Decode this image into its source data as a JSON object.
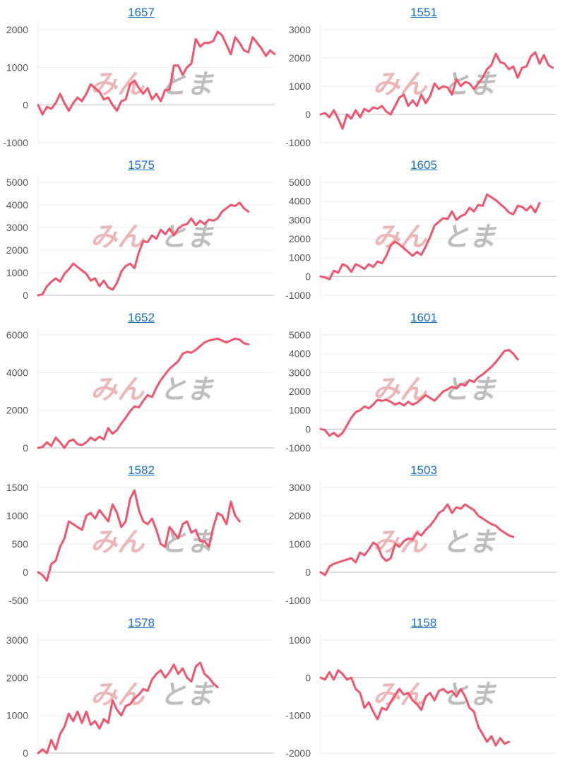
{
  "colors": {
    "line": "#f2546e",
    "link": "#1a6fc9",
    "zero": "#bdbdbd",
    "grid": "#eeeeee",
    "tick": "#555555"
  },
  "chart_data": [
    {
      "type": "line",
      "title": "1657",
      "ylim": [
        -1000,
        2000
      ],
      "ticks": [
        "2000",
        "1000",
        "0",
        "-1000"
      ],
      "tickvals": [
        2000,
        1000,
        0,
        -1000
      ],
      "values": [
        0,
        -250,
        -50,
        -100,
        50,
        300,
        50,
        -150,
        50,
        200,
        100,
        300,
        550,
        450,
        350,
        150,
        200,
        0,
        -150,
        100,
        150,
        550,
        650,
        450,
        300,
        450,
        150,
        300,
        100,
        400,
        400,
        1050,
        1050,
        800,
        1000,
        1100,
        1750,
        1550,
        1650,
        1650,
        1700,
        1950,
        1850,
        1600,
        1350,
        1800,
        1650,
        1450,
        1400,
        1800,
        1650,
        1500,
        1300,
        1450,
        1350
      ]
    },
    {
      "type": "line",
      "title": "1551",
      "ylim": [
        -1000,
        3000
      ],
      "ticks": [
        "3000",
        "2000",
        "1000",
        "0",
        "-1000"
      ],
      "tickvals": [
        3000,
        2000,
        1000,
        0,
        -1000
      ],
      "values": [
        0,
        50,
        -100,
        150,
        -150,
        -500,
        0,
        -150,
        150,
        -100,
        200,
        100,
        250,
        200,
        300,
        100,
        0,
        300,
        600,
        700,
        300,
        500,
        300,
        700,
        400,
        650,
        1100,
        900,
        1000,
        950,
        700,
        1250,
        1000,
        1150,
        1100,
        900,
        1100,
        1300,
        1600,
        1750,
        2150,
        1850,
        1800,
        1600,
        1700,
        1300,
        1650,
        1700,
        2050,
        2200,
        1800,
        2100,
        1750,
        1650
      ]
    },
    {
      "type": "line",
      "title": "1575",
      "ylim": [
        0,
        5000
      ],
      "ticks": [
        "5000",
        "4000",
        "3000",
        "2000",
        "1000",
        "0"
      ],
      "tickvals": [
        5000,
        4000,
        3000,
        2000,
        1000,
        0
      ],
      "values": [
        0,
        50,
        400,
        600,
        750,
        600,
        950,
        1150,
        1400,
        1250,
        1100,
        950,
        650,
        750,
        400,
        650,
        350,
        250,
        550,
        1050,
        1300,
        1400,
        1200,
        1900,
        2400,
        2350,
        2650,
        2500,
        2900,
        2700,
        2950,
        2650,
        2950,
        3100,
        3150,
        3400,
        3100,
        3300,
        3150,
        3350,
        3300,
        3400,
        3700,
        3850,
        4000,
        3950,
        4100,
        3850,
        3700
      ]
    },
    {
      "type": "line",
      "title": "1605",
      "ylim": [
        -1000,
        5000
      ],
      "ticks": [
        "5000",
        "4000",
        "3000",
        "2000",
        "1000",
        "0",
        "-1000"
      ],
      "tickvals": [
        5000,
        4000,
        3000,
        2000,
        1000,
        0,
        -1000
      ],
      "values": [
        0,
        -50,
        -150,
        300,
        200,
        650,
        550,
        250,
        650,
        550,
        400,
        650,
        500,
        800,
        700,
        1100,
        1650,
        1850,
        1700,
        1500,
        1300,
        1100,
        1300,
        1150,
        1600,
        2100,
        2700,
        2900,
        3100,
        3050,
        3450,
        3000,
        3200,
        3300,
        3650,
        3450,
        3800,
        3750,
        4350,
        4200,
        4050,
        3850,
        3650,
        3400,
        3300,
        3750,
        3700,
        3500,
        3750,
        3400,
        3900
      ]
    },
    {
      "type": "line",
      "title": "1652",
      "ylim": [
        0,
        6000
      ],
      "ticks": [
        "6000",
        "4000",
        "2000",
        "0"
      ],
      "tickvals": [
        6000,
        4000,
        2000,
        0
      ],
      "values": [
        0,
        50,
        300,
        100,
        550,
        300,
        0,
        350,
        450,
        200,
        150,
        300,
        550,
        400,
        600,
        450,
        1050,
        750,
        950,
        1300,
        1600,
        1950,
        2200,
        2150,
        2500,
        2800,
        2700,
        3200,
        3600,
        3900,
        4200,
        4400,
        4600,
        5000,
        5100,
        5050,
        5200,
        5400,
        5600,
        5700,
        5750,
        5800,
        5700,
        5600,
        5700,
        5800,
        5750,
        5550,
        5500
      ]
    },
    {
      "type": "line",
      "title": "1601",
      "ylim": [
        -1000,
        5000
      ],
      "ticks": [
        "5000",
        "4000",
        "3000",
        "2000",
        "1000",
        "0",
        "-1000"
      ],
      "tickvals": [
        5000,
        4000,
        3000,
        2000,
        1000,
        0,
        -1000
      ],
      "values": [
        0,
        -50,
        -350,
        -200,
        -400,
        -200,
        200,
        600,
        900,
        1000,
        1200,
        1100,
        1300,
        1550,
        1500,
        1550,
        1450,
        1300,
        1400,
        1250,
        1450,
        1300,
        1400,
        1600,
        1800,
        1650,
        1500,
        1750,
        2000,
        2100,
        2250,
        2150,
        2400,
        2300,
        2600,
        2500,
        2750,
        2900,
        3100,
        3300,
        3550,
        3850,
        4150,
        4200,
        4000,
        3700
      ]
    },
    {
      "type": "line",
      "title": "1582",
      "ylim": [
        -500,
        1500
      ],
      "ticks": [
        "1500",
        "1000",
        "500",
        "0",
        "-500"
      ],
      "tickvals": [
        1500,
        1000,
        500,
        0,
        -500
      ],
      "values": [
        0,
        -50,
        -150,
        150,
        200,
        450,
        600,
        900,
        850,
        800,
        750,
        1000,
        1050,
        950,
        1100,
        1000,
        900,
        1200,
        1050,
        800,
        900,
        1300,
        1450,
        1100,
        900,
        850,
        950,
        750,
        500,
        450,
        800,
        700,
        600,
        850,
        900,
        700,
        750,
        550,
        550,
        450,
        800,
        1050,
        1000,
        850,
        1250,
        1000,
        900
      ]
    },
    {
      "type": "line",
      "title": "1503",
      "ylim": [
        -1000,
        3000
      ],
      "ticks": [
        "3000",
        "2000",
        "1000",
        "0",
        "-1000"
      ],
      "tickvals": [
        3000,
        2000,
        1000,
        0,
        -1000
      ],
      "values": [
        0,
        -100,
        200,
        300,
        350,
        400,
        450,
        500,
        350,
        700,
        600,
        800,
        1050,
        950,
        550,
        400,
        500,
        1000,
        900,
        1100,
        1200,
        1150,
        1400,
        1300,
        1500,
        1650,
        1850,
        2100,
        2200,
        2400,
        2100,
        2300,
        2250,
        2400,
        2300,
        2200,
        2000,
        1900,
        1800,
        1700,
        1650,
        1500,
        1400,
        1300,
        1250
      ]
    },
    {
      "type": "line",
      "title": "1578",
      "ylim": [
        0,
        3000
      ],
      "ticks": [
        "3000",
        "2000",
        "1000",
        "0"
      ],
      "tickvals": [
        3000,
        2000,
        1000,
        0
      ],
      "values": [
        0,
        100,
        0,
        350,
        100,
        500,
        700,
        1050,
        850,
        1100,
        800,
        1100,
        750,
        850,
        650,
        900,
        800,
        1400,
        1150,
        1000,
        1250,
        1300,
        1450,
        1550,
        1700,
        1650,
        1950,
        2100,
        2200,
        2000,
        2150,
        2350,
        2100,
        2250,
        2000,
        1900,
        2300,
        2400,
        2100,
        2000,
        1850,
        1750
      ]
    },
    {
      "type": "line",
      "title": "1158",
      "ylim": [
        -2000,
        1000
      ],
      "ticks": [
        "1000",
        "0",
        "-1000",
        "-2000"
      ],
      "tickvals": [
        1000,
        0,
        -1000,
        -2000
      ],
      "values": [
        0,
        -50,
        150,
        -50,
        200,
        100,
        -50,
        0,
        -300,
        -400,
        -800,
        -650,
        -900,
        -1100,
        -800,
        -850,
        -650,
        -450,
        -300,
        -450,
        -400,
        -600,
        -700,
        -850,
        -500,
        -400,
        -600,
        -350,
        -300,
        -400,
        -350,
        -500,
        -300,
        -500,
        -800,
        -900,
        -1300,
        -1500,
        -1700,
        -1550,
        -1800,
        -1600,
        -1750,
        -1700
      ]
    }
  ],
  "watermark": {
    "left": "みん",
    "right": "とま"
  }
}
